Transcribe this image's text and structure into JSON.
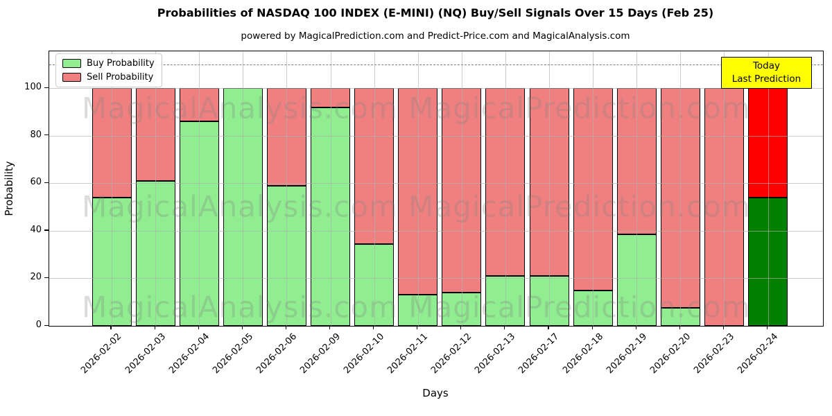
{
  "figure": {
    "title": "Probabilities of NASDAQ 100 INDEX (E-MINI) (NQ) Buy/Sell Signals Over 15 Days (Feb 25)",
    "subtitle": "powered by MagicalPrediction.com and Predict-Price.com and MagicalAnalysis.com"
  },
  "axes": {
    "xlabel": "Days",
    "ylabel": "Probability",
    "yticks": [
      0,
      20,
      40,
      60,
      80,
      100
    ],
    "ylim": [
      0,
      115.5
    ],
    "grid": true,
    "threshold_line": {
      "y": 110,
      "style": "dashed",
      "color": "#7f7f7f"
    }
  },
  "legend": {
    "position": "upper-left",
    "items": [
      {
        "label": "Buy Probability",
        "color": "#90EE90"
      },
      {
        "label": "Sell Probability",
        "color": "#F08080"
      }
    ]
  },
  "annotation": {
    "line1": "Today",
    "line2": "Last Prediction",
    "bg_color": "#FFFF00"
  },
  "watermark": {
    "texts": [
      "MagicalAnalysis.com",
      "MagicalPrediction.com"
    ]
  },
  "chart_data": {
    "type": "bar",
    "stacked": true,
    "title": "Probabilities of NASDAQ 100 INDEX (E-MINI) (NQ) Buy/Sell Signals Over 15 Days (Feb 25)",
    "xlabel": "Days",
    "ylabel": "Probability",
    "ylim": [
      0,
      115.5
    ],
    "dashed_line_y": 110,
    "legend_position": "upper-left",
    "categories": [
      "2026-02-02",
      "2026-02-03",
      "2026-02-04",
      "2026-02-05",
      "2026-02-06",
      "2026-02-09",
      "2026-02-10",
      "2026-02-11",
      "2026-02-12",
      "2026-02-13",
      "2026-02-17",
      "2026-02-18",
      "2026-02-19",
      "2026-02-20",
      "2026-02-23",
      "2026-02-24"
    ],
    "series": [
      {
        "name": "Buy Probability",
        "color": "#90EE90",
        "values": [
          54,
          61,
          86,
          100,
          59,
          92,
          34.5,
          13,
          14,
          21,
          21,
          15,
          38.5,
          7.5,
          0,
          54
        ]
      },
      {
        "name": "Sell Probability",
        "color": "#F08080",
        "values": [
          46,
          39,
          14,
          0,
          41,
          8,
          65.5,
          87,
          86,
          79,
          79,
          85,
          61.5,
          92.5,
          100,
          46
        ]
      }
    ],
    "today": {
      "category": "2026-02-24",
      "buy_color": "#008000",
      "sell_color": "#FF0000",
      "label": "Today Last Prediction"
    }
  }
}
